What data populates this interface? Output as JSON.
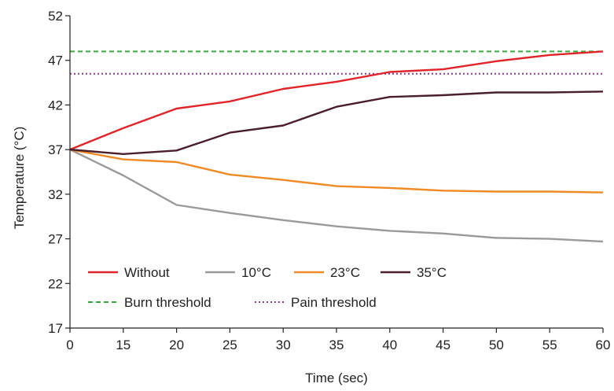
{
  "chart_data": {
    "type": "line",
    "xlabel": "Time (sec)",
    "ylabel": "Temperature (°C)",
    "xlim": [
      0,
      60
    ],
    "ylim": [
      17,
      52
    ],
    "x_ticks": [
      "0",
      "15",
      "20",
      "25",
      "30",
      "35",
      "40",
      "45",
      "50",
      "55",
      "60"
    ],
    "y_ticks": [
      "17",
      "22",
      "27",
      "32",
      "37",
      "42",
      "47",
      "52"
    ],
    "x": [
      "0",
      "15",
      "20",
      "25",
      "30",
      "35",
      "40",
      "45",
      "50",
      "55",
      "60"
    ],
    "grid": false,
    "legend_position": "bottom-left",
    "series": [
      {
        "name": "Without",
        "color": "#e0242a",
        "style": "solid",
        "values": [
          37.0,
          39.4,
          41.6,
          42.4,
          43.8,
          44.6,
          45.7,
          46.0,
          46.9,
          47.6,
          48.0
        ]
      },
      {
        "name": "10°C",
        "color": "#9a9a9a",
        "style": "solid",
        "values": [
          37.0,
          34.1,
          30.8,
          29.9,
          29.1,
          28.4,
          27.9,
          27.6,
          27.1,
          27.0,
          26.7
        ]
      },
      {
        "name": "23°C",
        "color": "#f08a24",
        "style": "solid",
        "values": [
          37.0,
          35.9,
          35.6,
          34.2,
          33.6,
          32.9,
          32.7,
          32.4,
          32.3,
          32.3,
          32.2
        ]
      },
      {
        "name": "35°C",
        "color": "#4a1f2c",
        "style": "solid",
        "values": [
          37.0,
          36.5,
          36.9,
          38.9,
          39.7,
          41.8,
          42.9,
          43.1,
          43.4,
          43.4,
          43.5
        ]
      }
    ],
    "thresholds": [
      {
        "name": "Burn threshold",
        "value": 48.0,
        "color": "#3aaa3a",
        "style": "dashed"
      },
      {
        "name": "Pain threshold",
        "value": 45.5,
        "color": "#8b3a8b",
        "style": "dotted"
      }
    ]
  }
}
